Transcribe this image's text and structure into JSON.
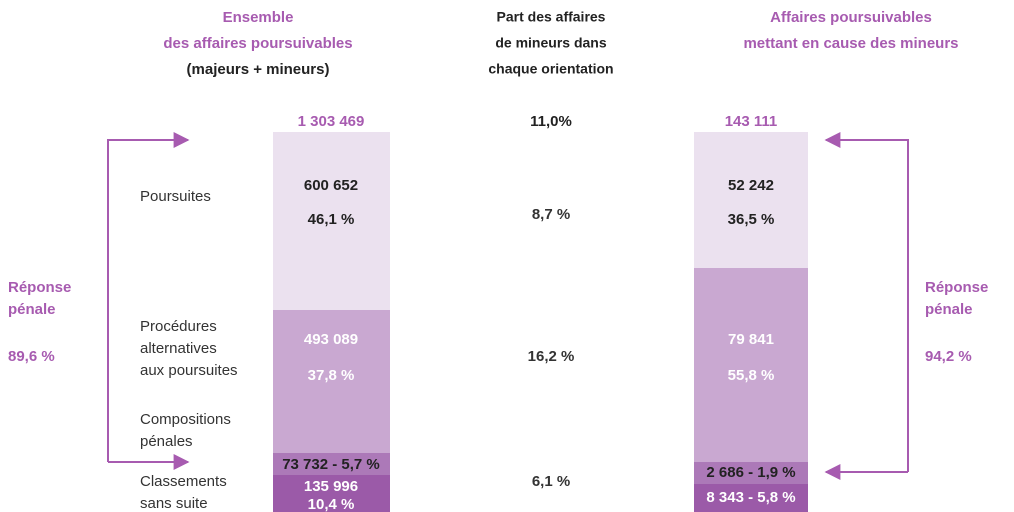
{
  "headers": {
    "left": [
      "Ensemble",
      "des affaires poursuivables",
      "(majeurs + mineurs)"
    ],
    "middle": [
      "Part des affaires",
      "de mineurs dans",
      "chaque orientation"
    ],
    "right": [
      "Affaires poursuivables",
      "mettant en cause des mineurs"
    ]
  },
  "row_labels": {
    "poursuites": [
      "Poursuites"
    ],
    "alternatives": [
      "Procédures",
      "alternatives",
      "aux poursuites"
    ],
    "compositions": [
      "Compositions",
      "pénales"
    ],
    "classements": [
      "Classements",
      "sans suite"
    ]
  },
  "left_bar": {
    "total": "1 303 469",
    "poursuites": [
      "600 652",
      "46,1 %"
    ],
    "alternatives": [
      "493 089",
      "37,8 %"
    ],
    "compositions": "73 732 - 5,7 %",
    "classements": [
      "135 996",
      "10,4 %"
    ]
  },
  "middle": {
    "total": "11,0%",
    "poursuites": "8,7 %",
    "alternatives": "16,2 %",
    "classements": "6,1 %"
  },
  "right_bar": {
    "total": "143 111",
    "poursuites": [
      "52 242",
      "36,5 %"
    ],
    "alternatives": [
      "79 841",
      "55,8 %"
    ],
    "compositions": "2 686 - 1,9 %",
    "classements": "8 343 - 5,8 %"
  },
  "reponse_left": {
    "label": [
      "Réponse",
      "pénale"
    ],
    "value": "89,6 %"
  },
  "reponse_right": {
    "label": [
      "Réponse",
      "pénale"
    ],
    "value": "94,2 %"
  }
}
